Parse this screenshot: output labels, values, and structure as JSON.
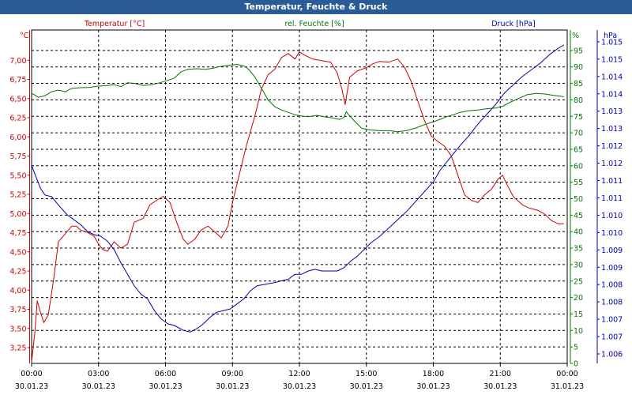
{
  "window": {
    "title": "Temperatur, Feuchte & Druck"
  },
  "colors": {
    "temperature": "#cc0000",
    "humidity": "#007700",
    "pressure": "#0000aa",
    "axis": "#000000",
    "grid": "#000000",
    "titlebar": "#2a5b97"
  },
  "chart_data": {
    "type": "line",
    "title": "Temperatur, Feuchte & Druck",
    "x_ticks": [
      {
        "time": "00:00",
        "date": "30.01.23",
        "hour": 0
      },
      {
        "time": "03:00",
        "date": "30.01.23",
        "hour": 3
      },
      {
        "time": "06:00",
        "date": "30.01.23",
        "hour": 6
      },
      {
        "time": "09:00",
        "date": "30.01.23",
        "hour": 9
      },
      {
        "time": "12:00",
        "date": "30.01.23",
        "hour": 12
      },
      {
        "time": "15:00",
        "date": "30.01.23",
        "hour": 15
      },
      {
        "time": "18:00",
        "date": "30.01.23",
        "hour": 18
      },
      {
        "time": "21:00",
        "date": "30.01.23",
        "hour": 21
      },
      {
        "time": "00:00",
        "date": "31.01.23",
        "hour": 24
      }
    ],
    "x_range": [
      0,
      24
    ],
    "grid": true,
    "axes": {
      "temperature": {
        "unit_label": "°C",
        "legend": "Temperatur [°C]",
        "ylim": [
          3.2,
          7.45
        ],
        "ticks": [
          "3,25",
          "3,50",
          "3,75",
          "4,00",
          "4,25",
          "4,50",
          "4,75",
          "5,00",
          "5,25",
          "5,50",
          "5,75",
          "6,00",
          "6,25",
          "6,50",
          "6,75",
          "7,00"
        ]
      },
      "humidity": {
        "unit_label": "%",
        "legend": "rel. Feuchte [%]",
        "ylim": [
          0,
          100
        ],
        "ticks": [
          "0",
          "5",
          "10",
          "15",
          "20",
          "25",
          "30",
          "35",
          "40",
          "45",
          "50",
          "55",
          "60",
          "65",
          "70",
          "75",
          "80",
          "85",
          "90",
          "95"
        ]
      },
      "pressure": {
        "unit_label": "hPa",
        "legend": "Druck [hPa]",
        "ylim": [
          1005.5,
          1015.6
        ],
        "ticks": [
          "1.006",
          "1.007",
          "1.007",
          "1.008",
          "1.008",
          "1.009",
          "1.009",
          "1.010",
          "1.010",
          "1.011",
          "1.011",
          "1.012",
          "1.012",
          "1.013",
          "1.013",
          "1.014",
          "1.014",
          "1.015",
          "1.015"
        ]
      }
    },
    "series": [
      {
        "name": "Temperatur [°C]",
        "axis": "temperature",
        "points": [
          [
            0,
            3.22
          ],
          [
            0.15,
            3.6
          ],
          [
            0.25,
            4.0
          ],
          [
            0.4,
            3.85
          ],
          [
            0.55,
            3.72
          ],
          [
            0.75,
            3.82
          ],
          [
            1.0,
            4.3
          ],
          [
            1.2,
            4.75
          ],
          [
            1.5,
            4.85
          ],
          [
            1.8,
            4.95
          ],
          [
            2.0,
            4.95
          ],
          [
            2.2,
            4.9
          ],
          [
            2.5,
            4.87
          ],
          [
            2.8,
            4.82
          ],
          [
            3.0,
            4.72
          ],
          [
            3.2,
            4.65
          ],
          [
            3.4,
            4.63
          ],
          [
            3.7,
            4.75
          ],
          [
            4.0,
            4.67
          ],
          [
            4.3,
            4.72
          ],
          [
            4.6,
            5.0
          ],
          [
            5.0,
            5.05
          ],
          [
            5.3,
            5.22
          ],
          [
            5.6,
            5.28
          ],
          [
            5.9,
            5.33
          ],
          [
            6.2,
            5.25
          ],
          [
            6.5,
            5.0
          ],
          [
            6.8,
            4.78
          ],
          [
            7.0,
            4.72
          ],
          [
            7.3,
            4.78
          ],
          [
            7.6,
            4.9
          ],
          [
            7.9,
            4.95
          ],
          [
            8.2,
            4.88
          ],
          [
            8.5,
            4.8
          ],
          [
            8.8,
            4.95
          ],
          [
            9.0,
            5.25
          ],
          [
            9.3,
            5.6
          ],
          [
            9.6,
            5.95
          ],
          [
            10.0,
            6.35
          ],
          [
            10.3,
            6.7
          ],
          [
            10.6,
            6.88
          ],
          [
            10.9,
            6.95
          ],
          [
            11.2,
            7.1
          ],
          [
            11.5,
            7.15
          ],
          [
            11.8,
            7.08
          ],
          [
            12.0,
            7.17
          ],
          [
            12.3,
            7.12
          ],
          [
            12.6,
            7.08
          ],
          [
            13.0,
            7.06
          ],
          [
            13.4,
            7.04
          ],
          [
            13.7,
            6.9
          ],
          [
            13.9,
            6.7
          ],
          [
            14.05,
            6.5
          ],
          [
            14.25,
            6.85
          ],
          [
            14.6,
            6.93
          ],
          [
            15.0,
            6.97
          ],
          [
            15.3,
            7.02
          ],
          [
            15.6,
            7.05
          ],
          [
            16.0,
            7.04
          ],
          [
            16.4,
            7.08
          ],
          [
            16.7,
            6.98
          ],
          [
            17.0,
            6.8
          ],
          [
            17.3,
            6.55
          ],
          [
            17.6,
            6.3
          ],
          [
            17.9,
            6.1
          ],
          [
            18.2,
            6.03
          ],
          [
            18.5,
            5.97
          ],
          [
            18.8,
            5.85
          ],
          [
            19.1,
            5.6
          ],
          [
            19.4,
            5.35
          ],
          [
            19.7,
            5.28
          ],
          [
            20.0,
            5.25
          ],
          [
            20.3,
            5.35
          ],
          [
            20.6,
            5.42
          ],
          [
            20.9,
            5.55
          ],
          [
            21.1,
            5.6
          ],
          [
            21.3,
            5.48
          ],
          [
            21.6,
            5.32
          ],
          [
            22.0,
            5.22
          ],
          [
            22.3,
            5.18
          ],
          [
            22.7,
            5.15
          ],
          [
            23.0,
            5.1
          ],
          [
            23.3,
            5.02
          ],
          [
            23.6,
            4.98
          ],
          [
            23.85,
            4.98
          ]
        ]
      },
      {
        "name": "rel. Feuchte [%]",
        "axis": "humidity",
        "points": [
          [
            0,
            81
          ],
          [
            0.15,
            80.5
          ],
          [
            0.3,
            79.8
          ],
          [
            0.6,
            80.3
          ],
          [
            0.9,
            81.5
          ],
          [
            1.2,
            82
          ],
          [
            1.5,
            81.5
          ],
          [
            1.8,
            82.5
          ],
          [
            2.2,
            82.7
          ],
          [
            2.6,
            82.8
          ],
          [
            3.0,
            83.2
          ],
          [
            3.3,
            83.3
          ],
          [
            3.7,
            83.6
          ],
          [
            4.0,
            83
          ],
          [
            4.3,
            84.2
          ],
          [
            4.6,
            84
          ],
          [
            5.0,
            83.4
          ],
          [
            5.4,
            83.6
          ],
          [
            5.8,
            84.3
          ],
          [
            6.1,
            84.9
          ],
          [
            6.4,
            85.6
          ],
          [
            6.7,
            87.5
          ],
          [
            7.0,
            88.2
          ],
          [
            7.4,
            88.4
          ],
          [
            7.8,
            88.2
          ],
          [
            8.1,
            88.5
          ],
          [
            8.4,
            89
          ],
          [
            8.8,
            89.4
          ],
          [
            9.2,
            89.7
          ],
          [
            9.5,
            89.3
          ],
          [
            9.7,
            88.4
          ],
          [
            10.0,
            86
          ],
          [
            10.3,
            82.5
          ],
          [
            10.6,
            79
          ],
          [
            10.9,
            77
          ],
          [
            11.2,
            76
          ],
          [
            11.5,
            75.3
          ],
          [
            11.8,
            74.6
          ],
          [
            12.1,
            74.2
          ],
          [
            12.4,
            74
          ],
          [
            12.8,
            74.4
          ],
          [
            13.1,
            74
          ],
          [
            13.5,
            73.6
          ],
          [
            13.8,
            73.2
          ],
          [
            14.0,
            73.8
          ],
          [
            14.1,
            75.5
          ],
          [
            14.25,
            74.2
          ],
          [
            14.5,
            72.5
          ],
          [
            14.8,
            70.5
          ],
          [
            15.2,
            70
          ],
          [
            15.6,
            69.8
          ],
          [
            16.0,
            69.8
          ],
          [
            16.4,
            69.5
          ],
          [
            16.8,
            69.8
          ],
          [
            17.2,
            70.6
          ],
          [
            17.6,
            71.6
          ],
          [
            18.0,
            72.5
          ],
          [
            18.3,
            73.2
          ],
          [
            18.6,
            74
          ],
          [
            18.9,
            74.6
          ],
          [
            19.2,
            75.3
          ],
          [
            19.6,
            75.8
          ],
          [
            20.0,
            76
          ],
          [
            20.4,
            76.4
          ],
          [
            20.8,
            76.6
          ],
          [
            21.1,
            77.1
          ],
          [
            21.4,
            78.2
          ],
          [
            21.8,
            79.4
          ],
          [
            22.2,
            80.6
          ],
          [
            22.6,
            81
          ],
          [
            23.0,
            80.8
          ],
          [
            23.4,
            80.4
          ],
          [
            23.85,
            80
          ]
        ]
      },
      {
        "name": "Druck [hPa]",
        "axis": "pressure",
        "points": [
          [
            0,
            1011.5
          ],
          [
            0.2,
            1011.15
          ],
          [
            0.4,
            1010.8
          ],
          [
            0.6,
            1010.6
          ],
          [
            0.9,
            1010.55
          ],
          [
            1.2,
            1010.3
          ],
          [
            1.4,
            1010.15
          ],
          [
            1.6,
            1010.0
          ],
          [
            1.9,
            1009.85
          ],
          [
            2.2,
            1009.7
          ],
          [
            2.5,
            1009.5
          ],
          [
            2.8,
            1009.4
          ],
          [
            3.1,
            1009.35
          ],
          [
            3.4,
            1009.2
          ],
          [
            3.7,
            1008.95
          ],
          [
            4.0,
            1008.55
          ],
          [
            4.3,
            1008.2
          ],
          [
            4.6,
            1007.85
          ],
          [
            4.9,
            1007.6
          ],
          [
            5.2,
            1007.45
          ],
          [
            5.5,
            1007.1
          ],
          [
            5.8,
            1006.85
          ],
          [
            6.1,
            1006.7
          ],
          [
            6.4,
            1006.65
          ],
          [
            6.8,
            1006.5
          ],
          [
            7.1,
            1006.45
          ],
          [
            7.4,
            1006.55
          ],
          [
            7.7,
            1006.7
          ],
          [
            8.0,
            1006.9
          ],
          [
            8.3,
            1007.05
          ],
          [
            8.6,
            1007.1
          ],
          [
            8.9,
            1007.15
          ],
          [
            9.2,
            1007.3
          ],
          [
            9.5,
            1007.45
          ],
          [
            9.8,
            1007.7
          ],
          [
            10.1,
            1007.85
          ],
          [
            10.5,
            1007.9
          ],
          [
            10.9,
            1007.95
          ],
          [
            11.2,
            1008.0
          ],
          [
            11.5,
            1008.05
          ],
          [
            11.8,
            1008.2
          ],
          [
            12.1,
            1008.2
          ],
          [
            12.4,
            1008.3
          ],
          [
            12.7,
            1008.35
          ],
          [
            13.0,
            1008.3
          ],
          [
            13.3,
            1008.3
          ],
          [
            13.7,
            1008.3
          ],
          [
            14.0,
            1008.4
          ],
          [
            14.3,
            1008.6
          ],
          [
            14.6,
            1008.75
          ],
          [
            14.9,
            1008.95
          ],
          [
            15.2,
            1009.15
          ],
          [
            15.6,
            1009.35
          ],
          [
            16.0,
            1009.6
          ],
          [
            16.4,
            1009.85
          ],
          [
            16.8,
            1010.1
          ],
          [
            17.2,
            1010.4
          ],
          [
            17.6,
            1010.7
          ],
          [
            18.0,
            1011.0
          ],
          [
            18.3,
            1011.35
          ],
          [
            18.6,
            1011.6
          ],
          [
            18.9,
            1011.85
          ],
          [
            19.2,
            1012.1
          ],
          [
            19.6,
            1012.4
          ],
          [
            20.0,
            1012.75
          ],
          [
            20.4,
            1013.05
          ],
          [
            20.8,
            1013.35
          ],
          [
            21.2,
            1013.7
          ],
          [
            21.6,
            1013.95
          ],
          [
            22.0,
            1014.2
          ],
          [
            22.4,
            1014.4
          ],
          [
            22.8,
            1014.6
          ],
          [
            23.2,
            1014.85
          ],
          [
            23.6,
            1015.05
          ],
          [
            23.85,
            1015.15
          ]
        ]
      }
    ]
  }
}
